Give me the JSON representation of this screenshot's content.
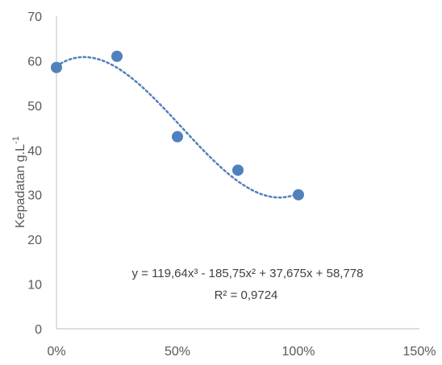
{
  "chart_data": {
    "type": "scatter",
    "ylabel": "Kepadatan g.L",
    "ylabel_superscript": "-1",
    "xlim": [
      0,
      1.5
    ],
    "ylim": [
      0,
      70
    ],
    "x_ticks": [
      "0%",
      "50%",
      "100%",
      "150%"
    ],
    "y_ticks": [
      "0",
      "10",
      "20",
      "30",
      "40",
      "50",
      "60",
      "70"
    ],
    "grid": false,
    "series": [
      {
        "x": [
          0,
          0.25,
          0.5,
          0.75,
          1.0
        ],
        "y": [
          58.5,
          61,
          43,
          35.5,
          30
        ],
        "color": "#4f81bd"
      }
    ],
    "trendline": {
      "type": "polynomial",
      "order": 3,
      "coefficients": [
        119.64,
        -185.75,
        37.675,
        58.778
      ],
      "color": "#4f81bd",
      "style": "dotted",
      "equation": "y = 119,64x³ - 185,75x² + 37,675x + 58,778",
      "r_squared": "R² = 0,9724"
    }
  }
}
